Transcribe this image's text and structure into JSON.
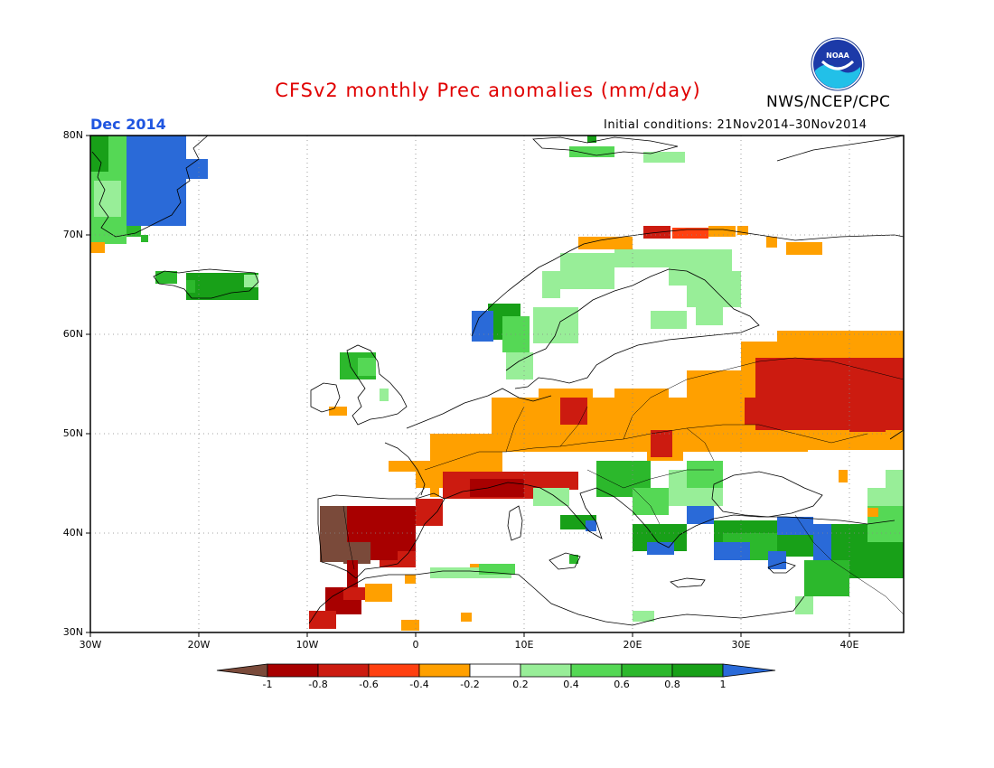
{
  "title": "CFSv2 monthly Prec anomalies (mm/day)",
  "agency": "NWS/NCEP/CPC",
  "logo_text": "NOAA",
  "valid_month": "Dec 2014",
  "initial_conditions": "Initial conditions: 21Nov2014–30Nov2014",
  "lat_labels": [
    "80N",
    "70N",
    "60N",
    "50N",
    "40N",
    "30N"
  ],
  "lon_labels": [
    "30W",
    "20W",
    "10W",
    "0",
    "10E",
    "20E",
    "30E",
    "40E"
  ],
  "colorbar": {
    "labels": [
      "-1",
      "-0.8",
      "-0.6",
      "-0.4",
      "-0.2",
      "0.2",
      "0.4",
      "0.6",
      "0.8",
      "1"
    ],
    "colors": [
      "#7a4a3a",
      "#a80000",
      "#cc1b10",
      "#ff4010",
      "#ffa000",
      "#ffffff",
      "#98ee98",
      "#55d855",
      "#2cb82c",
      "#18a018",
      "#2a6ad8"
    ]
  },
  "colors": {
    "title": "#e00000",
    "month": "#1f55e0"
  }
}
